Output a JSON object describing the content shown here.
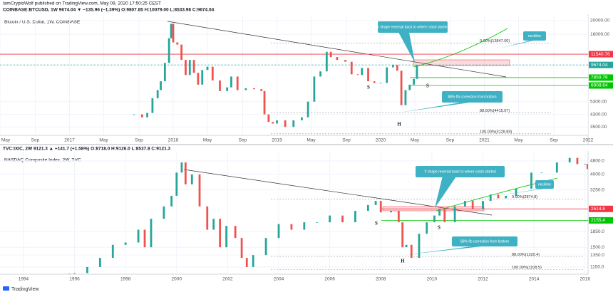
{
  "header": {
    "author": "IamCryptoWolf published on TradingView.com, May 09, 2020 17:50:25 CEST"
  },
  "footer": {
    "brand": "TradingView"
  },
  "chart_data": [
    {
      "type": "candlestick",
      "title": "Bitcoin / U.S. Dollar, 1W, COINBASE",
      "subtitle": "COINBASE:BTCUSD, 1W  9674.04 ▼ −135.96 (−1.39%)  O:9807.85 H:10079.00 L:8533.98 C:9674.04",
      "up_color": "#26a69a",
      "down_color": "#ef5350",
      "log_scale": true,
      "grid": true,
      "x": [
        2017.62,
        2017.7,
        2017.75,
        2017.8,
        2017.85,
        2017.88,
        2017.92,
        2017.96,
        2017.98,
        2018.0,
        2018.04,
        2018.08,
        2018.12,
        2018.16,
        2018.2,
        2018.24,
        2018.28,
        2018.33,
        2018.38,
        2018.45,
        2018.52,
        2018.56,
        2018.62,
        2018.7,
        2018.78,
        2018.85,
        2018.88,
        2018.92,
        2018.96,
        2019.0,
        2019.08,
        2019.16,
        2019.24,
        2019.3,
        2019.36,
        2019.42,
        2019.48,
        2019.52,
        2019.58,
        2019.66,
        2019.72,
        2019.78,
        2019.82,
        2019.88,
        2019.94,
        2020.0,
        2020.06,
        2020.12,
        2020.16,
        2020.2,
        2020.24,
        2020.28,
        2020.32,
        2020.35
      ],
      "values": [
        4300,
        4100,
        4400,
        5600,
        6400,
        7400,
        10000,
        15000,
        19000,
        14000,
        13500,
        10500,
        8200,
        10500,
        8500,
        7000,
        8900,
        9400,
        7500,
        6300,
        6700,
        8000,
        6400,
        6600,
        6500,
        6300,
        4300,
        3800,
        3700,
        3900,
        3500,
        3900,
        4100,
        5300,
        8000,
        8700,
        12000,
        11000,
        10500,
        10200,
        8300,
        8200,
        9200,
        7400,
        7200,
        7200,
        9300,
        9700,
        8800,
        5000,
        6400,
        7000,
        7700,
        9674.04
      ],
      "xlim": [
        2016.33,
        2022.0
      ],
      "xticks": [
        {
          "value": 2016.33,
          "label": "May"
        },
        {
          "value": 2016.67,
          "label": "Sep"
        },
        2017,
        {
          "value": 2017.33,
          "label": "May"
        },
        {
          "value": 2017.67,
          "label": "Sep"
        },
        2018,
        {
          "value": 2018.33,
          "label": "May"
        },
        {
          "value": 2018.67,
          "label": "Sep"
        },
        2019,
        {
          "value": 2019.33,
          "label": "May"
        },
        {
          "value": 2019.67,
          "label": "Sep"
        },
        2020,
        {
          "value": 2020.33,
          "label": "May"
        },
        {
          "value": 2020.67,
          "label": "Sep"
        },
        2021,
        {
          "value": 2021.33,
          "label": "May"
        },
        {
          "value": 2021.67,
          "label": "Sep"
        },
        2022
      ],
      "ylim": [
        3050,
        21700
      ],
      "yticks": [
        {
          "value": 20000,
          "label": "20000.00"
        },
        {
          "value": 16000,
          "label": "16000.00"
        },
        {
          "value": 5300,
          "label": "5300.00"
        },
        {
          "value": 4300,
          "label": "4300.00"
        },
        {
          "value": 3500,
          "label": "3500.00"
        }
      ],
      "levels": [
        {
          "value": 11540.76,
          "color": "#f23645"
        },
        {
          "value": 9674.04,
          "color": "#26a69a"
        },
        {
          "value": 7859.79,
          "color": "#00c800"
        },
        {
          "value": 6908.64,
          "color": "#00c800"
        }
      ],
      "fib_levels": [
        {
          "value": 13847.0,
          "label": "0.00%(13847.00)"
        },
        {
          "value": 4415.07,
          "label": "88.00%(4415.07)"
        },
        {
          "value": 3128.89,
          "label": "100.00%(3128.89)"
        }
      ],
      "annotations": [
        "V shape reversal back to where crash started",
        "neckline",
        "88% fib correction from bottom",
        "S",
        "S",
        "H"
      ]
    },
    {
      "type": "candlestick",
      "title": "NASDAQ Composite Index, 2W, TVC",
      "subtitle": "TVC:IXIC, 2W  9121.3 ▲ +141.7 (+1.58%)  O:8718.0 H:9126.0 L:8537.8 C:9121.3",
      "up_color": "#26a69a",
      "down_color": "#ef5350",
      "log_scale": true,
      "grid": true,
      "x": [
        1995.8,
        1996.0,
        1996.5,
        1997.0,
        1997.5,
        1998.0,
        1998.5,
        1998.75,
        1999.0,
        1999.5,
        1999.8,
        2000.0,
        2000.2,
        2000.35,
        2000.6,
        2000.9,
        2001.2,
        2001.45,
        2001.7,
        2001.95,
        2002.3,
        2002.55,
        2002.75,
        2003.0,
        2003.5,
        2004.0,
        2004.5,
        2005.0,
        2005.5,
        2006.0,
        2006.5,
        2007.0,
        2007.5,
        2007.8,
        2008.0,
        2008.4,
        2008.7,
        2008.85,
        2009.0,
        2009.2,
        2009.5,
        2009.8,
        2010.1,
        2010.3,
        2010.5,
        2010.9,
        2011.3,
        2011.6,
        2012.0,
        2012.3,
        2012.6,
        2012.9,
        2013.3,
        2013.9,
        2014.3,
        2014.9,
        2015.4,
        2015.7,
        2016.0,
        2016.1
      ],
      "values": [
        1050,
        1060,
        1150,
        1300,
        1550,
        1600,
        1900,
        1500,
        2200,
        2600,
        3000,
        4100,
        4700,
        3500,
        4000,
        2600,
        1900,
        2200,
        1500,
        2000,
        1700,
        1300,
        1150,
        1350,
        1700,
        2050,
        1900,
        2100,
        2100,
        2300,
        2100,
        2450,
        2650,
        2800,
        2400,
        2450,
        2100,
        1500,
        1550,
        1300,
        1800,
        2100,
        2300,
        2500,
        2100,
        2600,
        2800,
        2500,
        2800,
        3050,
        2900,
        3000,
        3300,
        4100,
        4100,
        4700,
        5000,
        4600,
        4600,
        4300
      ],
      "xlim": [
        1993.08,
        2016.12
      ],
      "xticks": [
        1994,
        1996,
        1998,
        2000,
        2002,
        2004,
        2006,
        2008,
        2010,
        2012,
        2014,
        2016
      ],
      "ylim": [
        1044,
        5430
      ],
      "yticks": [
        {
          "value": 4800,
          "label": "4800.0"
        },
        {
          "value": 4000,
          "label": "4000.0"
        },
        {
          "value": 3250,
          "label": "3250.0"
        },
        {
          "value": 1850,
          "label": "1850.0"
        },
        {
          "value": 1500,
          "label": "1500.0"
        },
        {
          "value": 1350,
          "label": "1350.0"
        },
        {
          "value": 1150,
          "label": "1150.0"
        }
      ],
      "levels": [
        {
          "value": 2514.8,
          "color": "#f23645"
        },
        {
          "value": 2155.4,
          "color": "#00c800"
        }
      ],
      "fib_levels": [
        {
          "value": 2874.8,
          "label": "0.00%(2874.8)"
        },
        {
          "value": 1320.4,
          "label": "88.00%(1320.4)"
        },
        {
          "value": 1108.5,
          "label": "100.00%(1108.5)"
        }
      ],
      "annotations": [
        "V shape reversal back to where crash started",
        "neckline",
        "88% fib correction from bottom",
        "S",
        "S",
        "H"
      ]
    }
  ]
}
